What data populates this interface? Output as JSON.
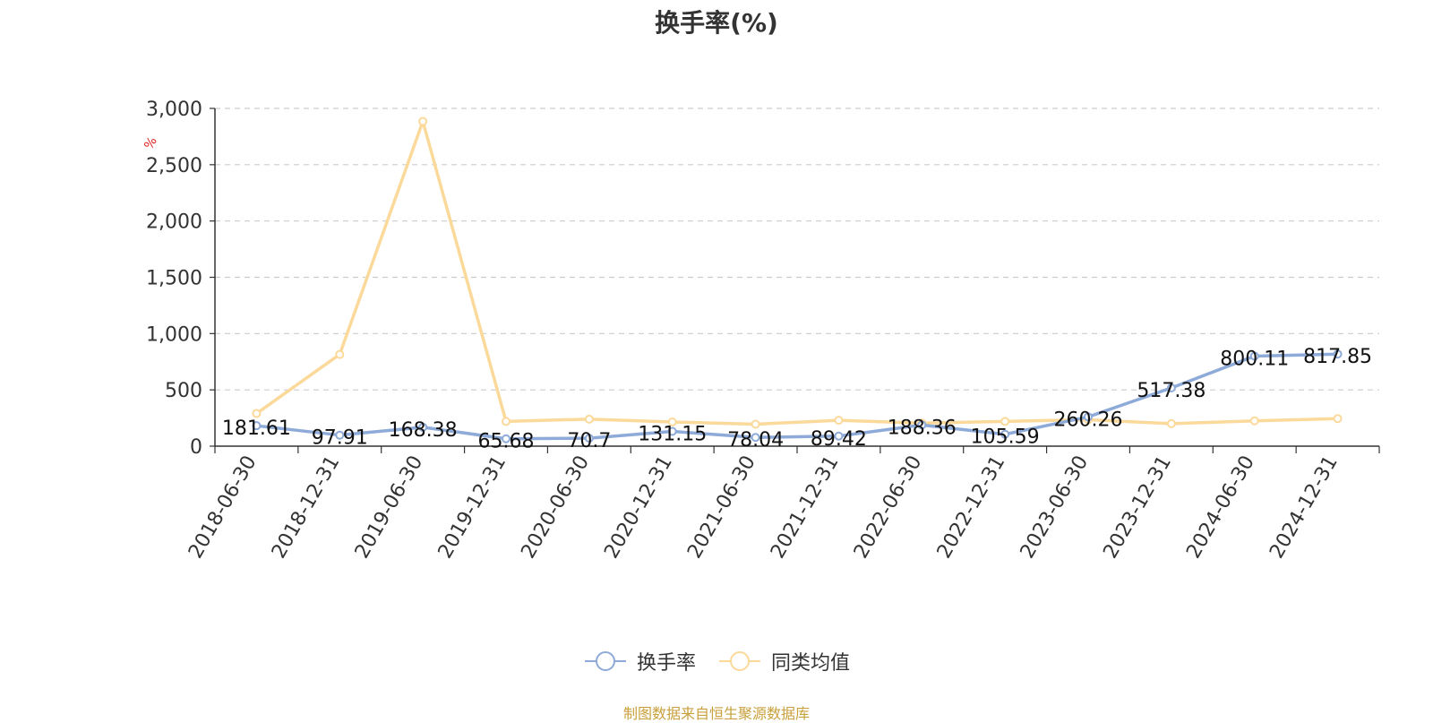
{
  "chart_data": {
    "type": "line",
    "title": "换手率(%)",
    "ylabel": "%",
    "ylim": [
      0,
      3000
    ],
    "yticks": [
      0,
      500,
      1000,
      1500,
      2000,
      2500,
      3000
    ],
    "ytick_labels": [
      "0",
      "500",
      "1,000",
      "1,500",
      "2,000",
      "2,500",
      "3,000"
    ],
    "categories": [
      "2018-06-30",
      "2018-12-31",
      "2019-06-30",
      "2019-12-31",
      "2020-06-30",
      "2020-12-31",
      "2021-06-30",
      "2021-12-31",
      "2022-06-30",
      "2022-12-31",
      "2023-06-30",
      "2023-12-31",
      "2024-06-30",
      "2024-12-31"
    ],
    "series": [
      {
        "name": "换手率",
        "color": "#8eaad8",
        "values": [
          181.61,
          97.91,
          168.38,
          65.68,
          70.7,
          131.15,
          78.04,
          89.42,
          188.36,
          105.59,
          260.26,
          517.38,
          800.11,
          817.85
        ],
        "labels": [
          "181.61",
          "97.91",
          "168.38",
          "65.68",
          "70.7",
          "131.15",
          "78.04",
          "89.42",
          "188.36",
          "105.59",
          "260.26",
          "517.38",
          "800.11",
          "817.85"
        ]
      },
      {
        "name": "同类均值",
        "color": "#fbd99a",
        "values": [
          290,
          815,
          2885,
          220,
          240,
          215,
          195,
          230,
          205,
          220,
          235,
          200,
          225,
          245
        ]
      }
    ],
    "grid": true,
    "legend_position": "bottom-center"
  },
  "legend": {
    "items": [
      "换手率",
      "同类均值"
    ]
  },
  "footer": {
    "source": "制图数据来自恒生聚源数据库",
    "source_color": "#c8a03c"
  },
  "axis_unit_color": "#e02020"
}
